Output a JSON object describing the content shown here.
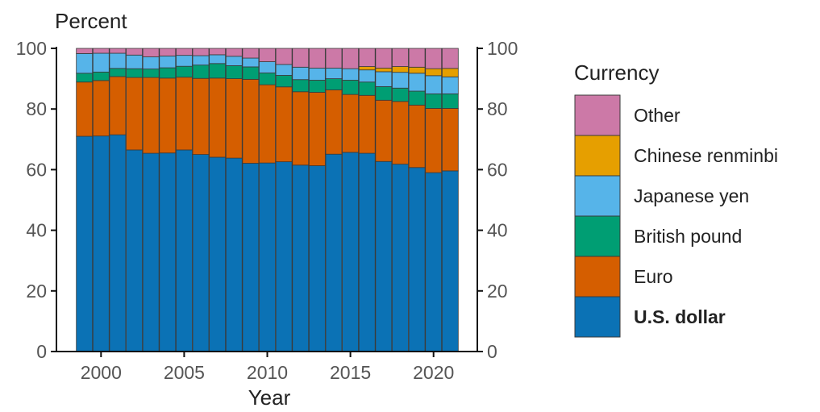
{
  "chart_data": {
    "type": "bar",
    "stacked": true,
    "ylabel": "Percent",
    "xlabel": "Year",
    "ylim": [
      0,
      100
    ],
    "yticks": [
      0,
      20,
      40,
      60,
      80,
      100
    ],
    "xticks": [
      2000,
      2005,
      2010,
      2015,
      2020
    ],
    "right_axis": true,
    "grid": false,
    "legend_title": "Currency",
    "legend_position": "right",
    "x": [
      1999,
      2000,
      2001,
      2002,
      2003,
      2004,
      2005,
      2006,
      2007,
      2008,
      2009,
      2010,
      2011,
      2012,
      2013,
      2014,
      2015,
      2016,
      2017,
      2018,
      2019,
      2020,
      2021
    ],
    "series": [
      {
        "name": "U.S. dollar",
        "color": "#0b72b5",
        "bold_label": true,
        "values": [
          71.0,
          71.1,
          71.5,
          66.5,
          65.4,
          65.5,
          66.5,
          65.0,
          64.1,
          63.8,
          62.1,
          62.2,
          62.6,
          61.5,
          61.3,
          65.1,
          65.7,
          65.4,
          62.7,
          61.8,
          60.7,
          59.0,
          59.6
        ]
      },
      {
        "name": "Euro",
        "color": "#d55e00",
        "values": [
          17.9,
          18.3,
          19.2,
          23.9,
          25.0,
          24.7,
          24.0,
          25.1,
          26.1,
          26.2,
          27.7,
          25.8,
          24.7,
          24.2,
          24.2,
          21.2,
          19.1,
          19.1,
          20.2,
          20.7,
          20.6,
          21.2,
          20.6
        ]
      },
      {
        "name": "British pound",
        "color": "#009e73",
        "values": [
          2.9,
          2.8,
          2.7,
          2.9,
          2.8,
          3.4,
          3.6,
          4.4,
          4.8,
          4.3,
          4.1,
          3.9,
          3.8,
          4.0,
          4.0,
          3.7,
          4.7,
          4.4,
          4.5,
          4.4,
          4.6,
          4.8,
          4.8
        ]
      },
      {
        "name": "Japanese yen",
        "color": "#56b4e9",
        "values": [
          6.5,
          6.2,
          5.0,
          4.5,
          4.0,
          3.9,
          3.6,
          3.1,
          2.9,
          3.1,
          2.9,
          3.7,
          3.6,
          4.1,
          4.0,
          3.5,
          3.8,
          4.0,
          4.9,
          5.2,
          5.9,
          6.0,
          5.6
        ]
      },
      {
        "name": "Chinese renminbi",
        "color": "#e69f00",
        "values": [
          0,
          0,
          0,
          0,
          0,
          0,
          0,
          0,
          0,
          0,
          0,
          0,
          0,
          0,
          0,
          0,
          0,
          1.1,
          1.2,
          1.9,
          2.0,
          2.3,
          2.8
        ]
      },
      {
        "name": "Other",
        "color": "#cc79a7",
        "values": [
          1.7,
          1.6,
          1.6,
          2.2,
          2.8,
          2.5,
          2.3,
          2.4,
          2.1,
          2.6,
          3.2,
          4.4,
          5.3,
          6.2,
          6.5,
          6.5,
          6.7,
          6.0,
          6.5,
          6.0,
          6.2,
          6.7,
          6.6
        ]
      }
    ]
  }
}
